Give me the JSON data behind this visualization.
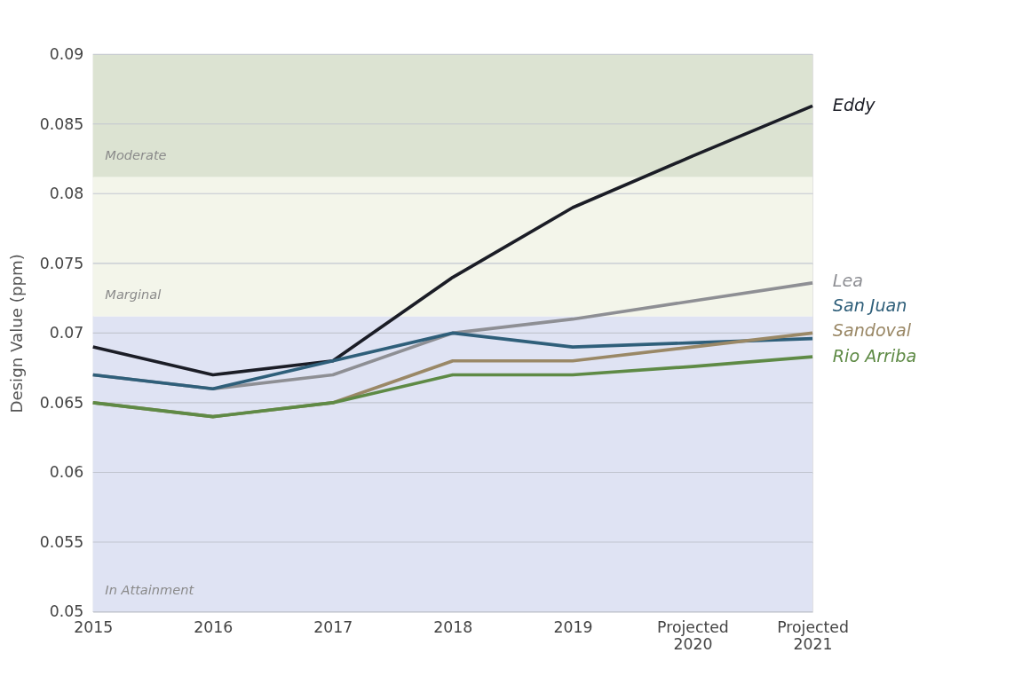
{
  "chart_data": {
    "type": "line",
    "ylabel": "Design Value (ppm)",
    "categories": [
      "2015",
      "2016",
      "2017",
      "2018",
      "2019",
      "Projected\n2020",
      "Projected\n2021"
    ],
    "series": [
      {
        "name": "Eddy",
        "color": "#1b1d26",
        "values": [
          0.069,
          0.067,
          0.068,
          0.074,
          0.079,
          0.0827,
          0.0863
        ]
      },
      {
        "name": "Lea",
        "color": "#8e8f94",
        "values": [
          0.067,
          0.066,
          0.067,
          0.07,
          0.071,
          0.0723,
          0.0736
        ]
      },
      {
        "name": "San Juan",
        "color": "#2f5f7a",
        "values": [
          0.067,
          0.066,
          0.068,
          0.07,
          0.069,
          0.0693,
          0.0696
        ]
      },
      {
        "name": "Sandoval",
        "color": "#9a8866",
        "values": [
          0.065,
          0.064,
          0.065,
          0.068,
          0.068,
          0.069,
          0.07
        ]
      },
      {
        "name": "Rio Arriba",
        "color": "#5e8a45",
        "values": [
          0.065,
          0.064,
          0.065,
          0.067,
          0.067,
          0.0676,
          0.0683
        ]
      }
    ],
    "bands": [
      {
        "axis": "y",
        "from": 0.05,
        "to": 0.0712,
        "label": "In Attainment",
        "color": "#dfe3f3"
      },
      {
        "axis": "y",
        "from": 0.0712,
        "to": 0.0812,
        "label": "Marginal",
        "color": "#f3f5ea"
      },
      {
        "axis": "y",
        "from": 0.0812,
        "to": 0.09,
        "label": "Moderate",
        "color": "#dce3d2"
      }
    ],
    "ylim": [
      0.05,
      0.09
    ],
    "yticks": [
      0.05,
      0.055,
      0.06,
      0.065,
      0.07,
      0.075,
      0.08,
      0.085,
      0.09
    ],
    "grid": "y",
    "legend": false,
    "line_style": "solid",
    "marker": "none"
  }
}
